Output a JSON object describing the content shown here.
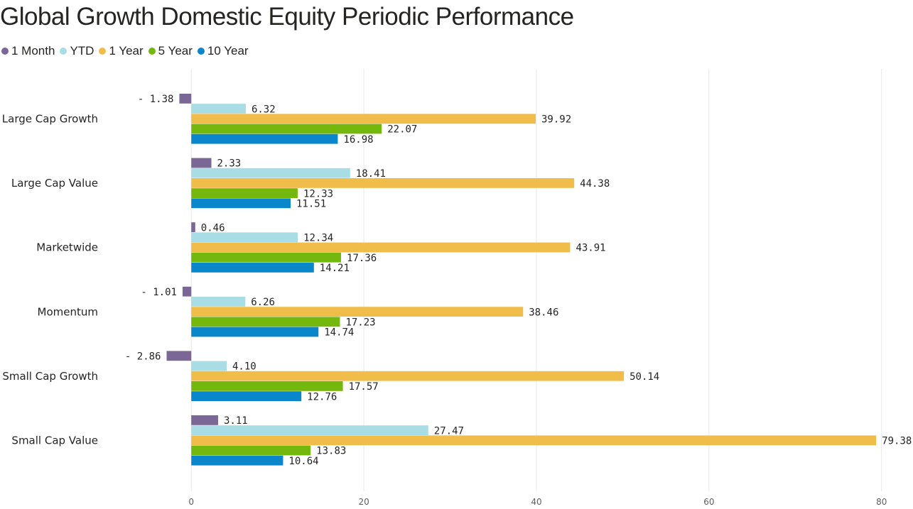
{
  "chart_data": {
    "type": "bar",
    "orientation": "horizontal",
    "title": "Global Growth Domestic Equity Periodic Performance",
    "categories": [
      "Large Cap Growth",
      "Large Cap Value",
      "Marketwide",
      "Momentum",
      "Small Cap Growth",
      "Small Cap Value"
    ],
    "series": [
      {
        "name": "1 Month",
        "color": "#7b6796",
        "values": [
          -1.38,
          2.33,
          0.46,
          -1.01,
          -2.86,
          3.11
        ]
      },
      {
        "name": "YTD",
        "color": "#a8dde6",
        "values": [
          6.32,
          18.41,
          12.34,
          6.26,
          4.1,
          27.47
        ]
      },
      {
        "name": "1 Year",
        "color": "#f0bc4a",
        "values": [
          39.92,
          44.38,
          43.91,
          38.46,
          50.14,
          79.38
        ]
      },
      {
        "name": "5 Year",
        "color": "#74b80d",
        "values": [
          22.07,
          12.33,
          17.36,
          17.23,
          17.57,
          13.83
        ]
      },
      {
        "name": "10 Year",
        "color": "#0a86cb",
        "values": [
          16.98,
          11.51,
          14.21,
          14.74,
          12.76,
          10.64
        ]
      }
    ],
    "x_ticks": [
      0,
      20,
      40,
      60,
      80
    ],
    "xlim": [
      -4.3,
      80.6
    ],
    "data_label_decimals": 2,
    "legend_position": "top-left",
    "grid": true
  }
}
